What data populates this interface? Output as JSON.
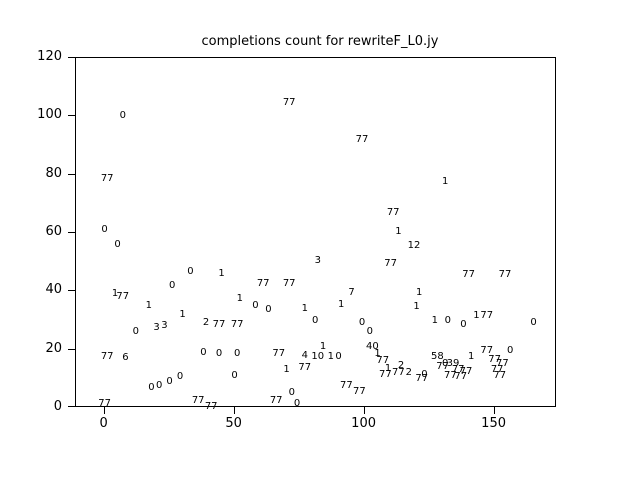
{
  "window": {
    "background": "#ffffff"
  },
  "colors": {
    "axis": "#000000",
    "text": "#000000",
    "background": "#ffffff"
  },
  "chart_data": {
    "type": "scatter",
    "title": "completions count for rewriteF_L0.jy",
    "marker": "text-label",
    "xlabel": "",
    "ylabel": "",
    "xlim": [
      -11,
      174
    ],
    "ylim": [
      0,
      120
    ],
    "x_ticks": [
      0,
      50,
      100,
      150
    ],
    "y_ticks": [
      0,
      20,
      40,
      60,
      80,
      100,
      120
    ],
    "grid": false,
    "legend": "none",
    "points": [
      [
        1,
        78.5,
        "77"
      ],
      [
        0,
        61,
        "0"
      ],
      [
        7,
        100,
        "0"
      ],
      [
        5,
        56,
        "0"
      ],
      [
        4,
        39,
        "1"
      ],
      [
        7,
        38,
        "77"
      ],
      [
        1,
        17.5,
        "77"
      ],
      [
        8,
        17,
        "6"
      ],
      [
        0,
        1.5,
        "77"
      ],
      [
        12,
        26,
        "0"
      ],
      [
        17,
        35,
        "1"
      ],
      [
        20,
        27.5,
        "3"
      ],
      [
        23,
        28,
        "3"
      ],
      [
        18,
        7,
        "0"
      ],
      [
        21,
        7.5,
        "0"
      ],
      [
        25,
        9,
        "0"
      ],
      [
        29,
        10.5,
        "0"
      ],
      [
        26,
        42,
        "0"
      ],
      [
        30,
        32,
        "1"
      ],
      [
        33,
        46.5,
        "0"
      ],
      [
        39,
        29,
        "2"
      ],
      [
        38,
        19,
        "0"
      ],
      [
        36,
        2.5,
        "77"
      ],
      [
        45,
        46,
        "1"
      ],
      [
        44,
        28.5,
        "77"
      ],
      [
        44,
        18.5,
        "0"
      ],
      [
        41,
        0.5,
        "77"
      ],
      [
        51,
        28.5,
        "77"
      ],
      [
        51,
        18.5,
        "0"
      ],
      [
        50,
        11,
        "0"
      ],
      [
        52,
        37.5,
        "1"
      ],
      [
        58,
        35,
        "0"
      ],
      [
        61,
        42.5,
        "77"
      ],
      [
        63,
        33.5,
        "0"
      ],
      [
        71,
        42.5,
        "77"
      ],
      [
        66,
        2.5,
        "77"
      ],
      [
        67,
        18.5,
        "77"
      ],
      [
        70,
        13,
        "1"
      ],
      [
        72,
        5,
        "0"
      ],
      [
        71,
        104.5,
        "77"
      ],
      [
        74,
        1.5,
        "0"
      ],
      [
        77,
        34,
        "1"
      ],
      [
        77,
        18,
        "4"
      ],
      [
        77,
        13.8,
        "77"
      ],
      [
        82,
        50.5,
        "3"
      ],
      [
        81,
        30,
        "0"
      ],
      [
        82,
        17.5,
        "10"
      ],
      [
        84,
        21,
        "1"
      ],
      [
        87,
        17.5,
        "1"
      ],
      [
        90,
        17.5,
        "0"
      ],
      [
        91,
        35.5,
        "1"
      ],
      [
        95,
        39.5,
        "7"
      ],
      [
        93,
        7.5,
        "77"
      ],
      [
        98,
        5.5,
        "77"
      ],
      [
        99,
        92,
        "77"
      ],
      [
        99,
        29,
        "0"
      ],
      [
        102,
        26,
        "0"
      ],
      [
        103,
        21,
        "40"
      ],
      [
        105,
        18.5,
        "1"
      ],
      [
        107,
        16,
        "77"
      ],
      [
        109,
        13.5,
        "1"
      ],
      [
        108,
        11.5,
        "77"
      ],
      [
        111,
        67,
        "77"
      ],
      [
        113,
        60.5,
        "1"
      ],
      [
        110,
        49.5,
        "77"
      ],
      [
        119,
        55.5,
        "12"
      ],
      [
        121,
        39.5,
        "1"
      ],
      [
        120,
        34.5,
        "1"
      ],
      [
        114,
        14.5,
        "2"
      ],
      [
        113,
        12,
        "77"
      ],
      [
        117,
        12,
        "2"
      ],
      [
        122,
        10,
        "77"
      ],
      [
        123,
        11.5,
        "0"
      ],
      [
        131,
        77.5,
        "1"
      ],
      [
        127,
        30,
        "1"
      ],
      [
        132,
        30,
        "0"
      ],
      [
        128,
        17.5,
        "58"
      ],
      [
        130,
        14,
        "77"
      ],
      [
        131,
        15,
        "0"
      ],
      [
        134,
        15,
        "39"
      ],
      [
        136,
        13,
        "77"
      ],
      [
        133,
        11,
        "77"
      ],
      [
        138,
        28.5,
        "0"
      ],
      [
        140,
        45.5,
        "77"
      ],
      [
        154,
        45.5,
        "77"
      ],
      [
        141,
        17.5,
        "1"
      ],
      [
        137,
        10.5,
        "77"
      ],
      [
        139,
        12.5,
        "77"
      ],
      [
        143,
        31.5,
        "1"
      ],
      [
        147,
        31.5,
        "77"
      ],
      [
        147,
        19.5,
        "77"
      ],
      [
        156,
        19.5,
        "0"
      ],
      [
        151,
        13,
        "77"
      ],
      [
        153,
        15,
        "77"
      ],
      [
        150,
        16.5,
        "77"
      ],
      [
        152,
        11,
        "77"
      ],
      [
        165,
        29,
        "0"
      ]
    ]
  }
}
